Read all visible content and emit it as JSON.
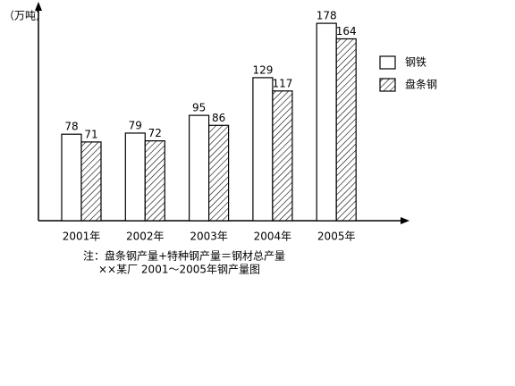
{
  "chart_data": {
    "type": "bar",
    "y_label": "（万吨）",
    "categories": [
      "2001年",
      "2002年",
      "2003年",
      "2004年",
      "2005年"
    ],
    "series": [
      {
        "name": "钢铁",
        "color": "#ffffff",
        "pattern": "solid",
        "values": [
          78,
          79,
          95,
          129,
          178
        ]
      },
      {
        "name": "盘条钢",
        "color": "#ffffff",
        "pattern": "hatch",
        "values": [
          71,
          72,
          86,
          117,
          164
        ]
      }
    ],
    "ylim": [
      0,
      195
    ],
    "legend": "right",
    "notes": [
      "注：盘条钢产量+特种钢产量＝钢材总产量",
      "××某厂 2001～2005年钢产量图"
    ]
  }
}
